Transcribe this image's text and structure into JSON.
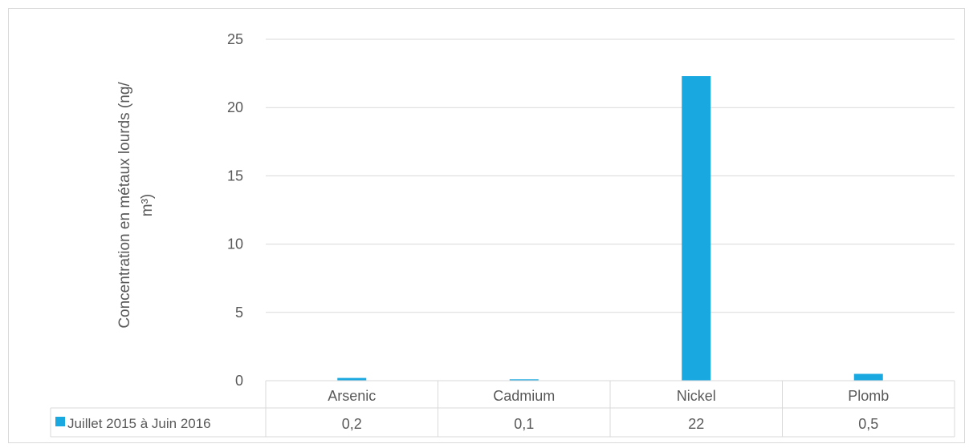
{
  "chart_data": {
    "type": "bar",
    "categories": [
      "Arsenic",
      "Cadmium",
      "Nickel",
      "Plomb"
    ],
    "series": [
      {
        "name": "Juillet 2015 à Juin 2016",
        "values": [
          0.2,
          0.1,
          22.3,
          0.5
        ],
        "labels": [
          "0,2",
          "0,1",
          "22",
          "0,5"
        ],
        "color": "#1aa8e0"
      }
    ],
    "ylabel_line1": "Concentration en métaux lourds (ng/",
    "ylabel_line2": "m³)",
    "ylim": [
      0,
      25
    ],
    "yticks": [
      0,
      5,
      10,
      15,
      20,
      25
    ],
    "grid": true,
    "legend": "data-table"
  }
}
